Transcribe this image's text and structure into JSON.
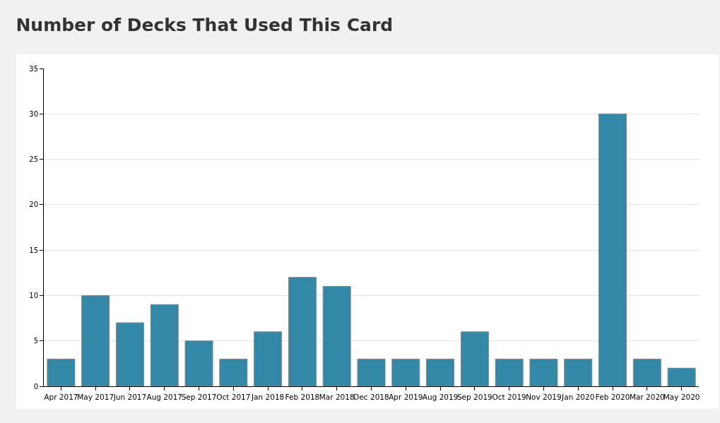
{
  "chart_data": {
    "type": "bar",
    "title": "Number of Decks That Used This Card",
    "categories": [
      "Apr 2017",
      "May 2017",
      "Jun 2017",
      "Aug 2017",
      "Sep 2017",
      "Oct 2017",
      "Jan 2018",
      "Feb 2018",
      "Mar 2018",
      "Dec 2018",
      "Apr 2019",
      "Aug 2019",
      "Sep 2019",
      "Oct 2019",
      "Nov 2019",
      "Jan 2020",
      "Feb 2020",
      "Mar 2020",
      "May 2020"
    ],
    "values": [
      3,
      10,
      7,
      9,
      5,
      3,
      6,
      12,
      11,
      3,
      3,
      3,
      6,
      3,
      3,
      3,
      30,
      3,
      2
    ],
    "color": "#3288a6",
    "ylim": [
      0,
      35
    ],
    "yticks": [
      0,
      5,
      10,
      15,
      20,
      25,
      30,
      35
    ],
    "grid": "y"
  }
}
